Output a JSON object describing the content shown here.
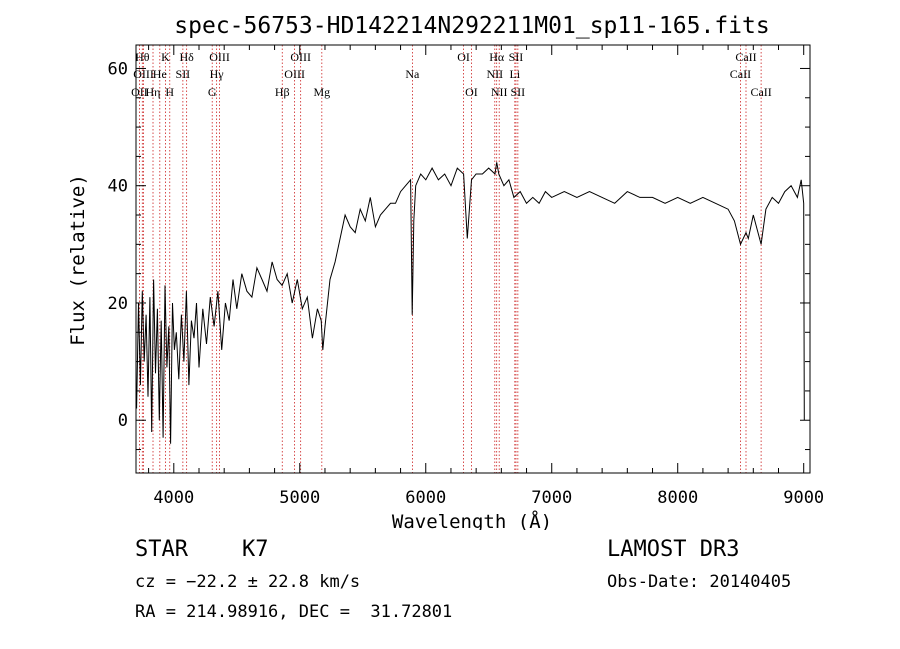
{
  "chart_data": {
    "type": "line",
    "title": "spec-56753-HD142214N292211M01_sp11-165.fits",
    "xlabel": "Wavelength (Å)",
    "ylabel": "Flux (relative)",
    "xlim": [
      3700,
      9050
    ],
    "ylim": [
      -9,
      64
    ],
    "xticks": [
      4000,
      5000,
      6000,
      7000,
      8000,
      9000
    ],
    "xtick_labels": [
      "4000",
      "5000",
      "6000",
      "7000",
      "8000",
      "9000"
    ],
    "yticks": [
      0,
      20,
      40,
      60
    ],
    "ytick_labels": [
      "0",
      "20",
      "40",
      "60"
    ],
    "series": [
      {
        "name": "spectrum",
        "x": [
          3705,
          3720,
          3735,
          3750,
          3765,
          3780,
          3795,
          3810,
          3825,
          3840,
          3855,
          3870,
          3885,
          3900,
          3915,
          3930,
          3945,
          3960,
          3975,
          3990,
          4005,
          4020,
          4040,
          4060,
          4080,
          4100,
          4120,
          4140,
          4160,
          4180,
          4200,
          4230,
          4260,
          4290,
          4320,
          4350,
          4380,
          4410,
          4440,
          4470,
          4500,
          4540,
          4580,
          4620,
          4660,
          4700,
          4740,
          4780,
          4820,
          4860,
          4900,
          4940,
          4980,
          5020,
          5060,
          5100,
          5140,
          5170,
          5183,
          5200,
          5240,
          5280,
          5320,
          5360,
          5400,
          5440,
          5480,
          5520,
          5560,
          5600,
          5640,
          5680,
          5720,
          5760,
          5800,
          5840,
          5880,
          5892,
          5905,
          5920,
          5960,
          6000,
          6050,
          6100,
          6150,
          6200,
          6250,
          6300,
          6330,
          6363,
          6400,
          6450,
          6500,
          6550,
          6563,
          6580,
          6620,
          6660,
          6700,
          6750,
          6800,
          6850,
          6900,
          6950,
          7000,
          7100,
          7200,
          7300,
          7400,
          7500,
          7600,
          7700,
          7800,
          7900,
          8000,
          8100,
          8200,
          8300,
          8400,
          8450,
          8498,
          8542,
          8560,
          8600,
          8662,
          8700,
          8750,
          8800,
          8850,
          8900,
          8950,
          8980,
          9000,
          9005
        ],
        "y": [
          2,
          20,
          6,
          22,
          10,
          18,
          4,
          21,
          -2,
          24,
          8,
          19,
          0,
          17,
          -3,
          23,
          9,
          16,
          -4,
          20,
          12,
          15,
          7,
          18,
          10,
          22,
          6,
          17,
          14,
          20,
          9,
          19,
          13,
          21,
          16,
          22,
          12,
          20,
          17,
          24,
          19,
          25,
          22,
          21,
          26,
          24,
          22,
          27,
          24,
          23,
          25,
          20,
          24,
          19,
          21,
          14,
          19,
          17,
          12,
          16,
          24,
          27,
          31,
          35,
          33,
          32,
          36,
          34,
          38,
          33,
          35,
          36,
          37,
          37,
          39,
          40,
          41,
          18,
          34,
          40,
          42,
          41,
          43,
          41,
          42,
          40,
          43,
          42,
          31,
          41,
          42,
          42,
          43,
          42,
          44,
          42,
          40,
          41,
          38,
          39,
          37,
          38,
          37,
          39,
          38,
          39,
          38,
          39,
          38,
          37,
          39,
          38,
          38,
          37,
          38,
          37,
          38,
          37,
          36,
          34,
          30,
          32,
          31,
          35,
          30,
          36,
          38,
          37,
          39,
          40,
          38,
          41,
          37,
          0
        ]
      }
    ],
    "line_ids": [
      {
        "label": "OII",
        "x": 3727,
        "row": 3
      },
      {
        "label": "Hθ",
        "x": 3750,
        "row": 1
      },
      {
        "label": "OIII",
        "x": 3760,
        "row": 2
      },
      {
        "label": "Hη",
        "x": 3835,
        "row": 3
      },
      {
        "label": "He",
        "x": 3889,
        "row": 2
      },
      {
        "label": "K",
        "x": 3934,
        "row": 1
      },
      {
        "label": "H",
        "x": 3968,
        "row": 3
      },
      {
        "label": "SII",
        "x": 4072,
        "row": 2
      },
      {
        "label": "Hδ",
        "x": 4102,
        "row": 1
      },
      {
        "label": "G",
        "x": 4305,
        "row": 3
      },
      {
        "label": "Hγ",
        "x": 4340,
        "row": 2
      },
      {
        "label": "OIII",
        "x": 4363,
        "row": 1
      },
      {
        "label": "Hβ",
        "x": 4861,
        "row": 3
      },
      {
        "label": "OIII",
        "x": 4959,
        "row": 2
      },
      {
        "label": "OIII",
        "x": 5007,
        "row": 1
      },
      {
        "label": "Mg",
        "x": 5175,
        "row": 3
      },
      {
        "label": "Na",
        "x": 5894,
        "row": 2
      },
      {
        "label": "OI",
        "x": 6300,
        "row": 1
      },
      {
        "label": "OI",
        "x": 6363,
        "row": 3
      },
      {
        "label": "NII",
        "x": 6548,
        "row": 2
      },
      {
        "label": "Hα",
        "x": 6563,
        "row": 1
      },
      {
        "label": "NII",
        "x": 6583,
        "row": 3
      },
      {
        "label": "Li",
        "x": 6707,
        "row": 2
      },
      {
        "label": "SII",
        "x": 6716,
        "row": 1
      },
      {
        "label": "SII",
        "x": 6731,
        "row": 3
      },
      {
        "label": "CaII",
        "x": 8498,
        "row": 2
      },
      {
        "label": "CaII",
        "x": 8542,
        "row": 1
      },
      {
        "label": "CaII",
        "x": 8662,
        "row": 3
      }
    ]
  },
  "info": {
    "class_label": "STAR",
    "subclass": "K7",
    "survey": "LAMOST DR3",
    "cz": "cz = −22.2 ± 22.8 km/s",
    "obs_date": "Obs-Date: 20140405",
    "radec": "RA = 214.98916, DEC =  31.72801"
  },
  "colors": {
    "axis": "#000000",
    "line_marker": "#cc2222",
    "spectrum": "#000000"
  }
}
